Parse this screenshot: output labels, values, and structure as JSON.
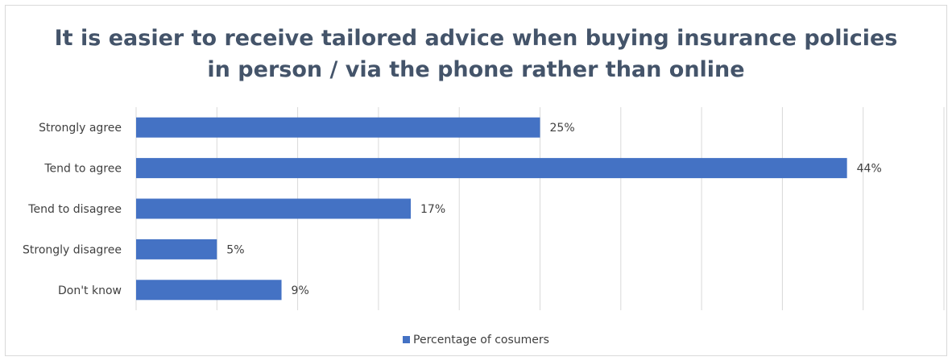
{
  "chart_data": {
    "type": "bar",
    "orientation": "horizontal",
    "title": "It is easier to receive tailored advice when buying insurance policies\nin person / via the phone rather than online",
    "categories": [
      "Strongly agree",
      "Tend to agree",
      "Tend to disagree",
      "Strongly disagree",
      "Don't know"
    ],
    "series": [
      {
        "name": "Percentage of cosumers",
        "values": [
          25,
          44,
          17,
          5,
          9
        ],
        "labels": [
          "25%",
          "44%",
          "17%",
          "5%",
          "9%"
        ],
        "color": "#4472c4"
      }
    ],
    "xlim": [
      0,
      50
    ],
    "grid": true,
    "legend_position": "bottom"
  }
}
